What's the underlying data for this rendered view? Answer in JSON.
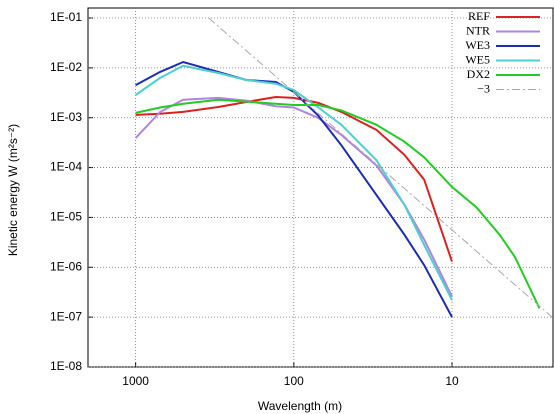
{
  "chart_data": {
    "type": "line",
    "xlabel": "Wavelength (m)",
    "ylabel": "Kinetic energy W (m²s⁻²)",
    "log_x": true,
    "log_y": true,
    "grid": true,
    "legend": "upper right",
    "xlim": [
      2000,
      2.3
    ],
    "xticks": [
      1000,
      100,
      10
    ],
    "ylim": [
      1e-08,
      0.1
    ],
    "yticks": [
      {
        "value": 1e-08,
        "label": "1E-08"
      },
      {
        "value": 1e-07,
        "label": "1E-07"
      },
      {
        "value": 1e-06,
        "label": "1E-06"
      },
      {
        "value": 1e-05,
        "label": "1E-05"
      },
      {
        "value": 0.0001,
        "label": "1E-04"
      },
      {
        "value": 0.001,
        "label": "1E-03"
      },
      {
        "value": 0.01,
        "label": "1E-02"
      },
      {
        "value": 0.1,
        "label": "1E-01"
      }
    ],
    "series": [
      {
        "name": "REF",
        "color": "#dd2020",
        "x": [
          1000,
          700,
          500,
          300,
          200,
          130,
          100,
          70,
          50,
          30,
          20,
          15,
          10
        ],
        "values": [
          0.00114,
          0.0012,
          0.00131,
          0.00164,
          0.00207,
          0.0026,
          0.0025,
          0.00198,
          0.00131,
          0.00057,
          0.00018,
          5.7e-05,
          1.3e-06
        ]
      },
      {
        "name": "NTR",
        "color": "#b084e0",
        "x": [
          1000,
          700,
          500,
          300,
          200,
          130,
          100,
          70,
          50,
          30,
          20,
          15,
          10
        ],
        "values": [
          0.00039,
          0.0013,
          0.0023,
          0.0025,
          0.0022,
          0.0017,
          0.0016,
          0.00099,
          0.00045,
          0.00011,
          1.8e-05,
          3.6e-06,
          2.6e-07
        ]
      },
      {
        "name": "WE3",
        "color": "#1a2cb8",
        "x": [
          1000,
          700,
          500,
          300,
          200,
          130,
          100,
          70,
          50,
          30,
          20,
          15,
          10
        ],
        "values": [
          0.0045,
          0.0083,
          0.0131,
          0.0083,
          0.0057,
          0.0052,
          0.0033,
          0.0011,
          0.00028,
          2.8e-05,
          4.5e-06,
          1.1e-06,
          1e-07
        ]
      },
      {
        "name": "WE5",
        "color": "#4cd0d0",
        "x": [
          1000,
          700,
          500,
          300,
          200,
          130,
          100,
          70,
          50,
          30,
          20,
          15,
          10
        ],
        "values": [
          0.00286,
          0.0063,
          0.011,
          0.0079,
          0.0057,
          0.0048,
          0.0036,
          0.0016,
          0.00072,
          0.00014,
          1.8e-05,
          2.8e-06,
          2.2e-07
        ]
      },
      {
        "name": "DX2",
        "color": "#22cc22",
        "x": [
          1000,
          700,
          500,
          300,
          200,
          130,
          100,
          70,
          50,
          30,
          20,
          15,
          10,
          7,
          5,
          4,
          2.8
        ],
        "values": [
          0.00125,
          0.0016,
          0.0019,
          0.0023,
          0.0021,
          0.0019,
          0.0018,
          0.0018,
          0.0014,
          0.00072,
          0.00033,
          0.00016,
          4.1e-05,
          1.6e-05,
          4.5e-06,
          1.6e-06,
          1.5e-07
        ]
      },
      {
        "name": "−3",
        "color": "#aaaaaa",
        "dash": "8,3,2,3",
        "x": [
          345,
          2.33
        ],
        "values": [
          0.1,
          1e-07
        ]
      }
    ]
  }
}
